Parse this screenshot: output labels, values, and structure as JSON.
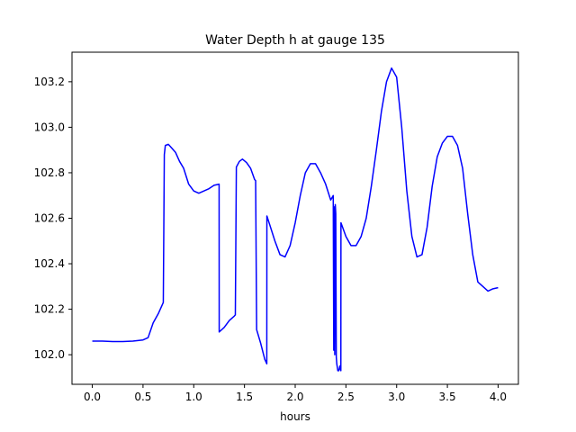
{
  "chart_data": {
    "type": "line",
    "title": "Water Depth h at gauge 135",
    "xlabel": "hours",
    "ylabel": "",
    "xlim": [
      -0.2,
      4.2
    ],
    "ylim": [
      101.87,
      103.33
    ],
    "xticks": [
      0.0,
      0.5,
      1.0,
      1.5,
      2.0,
      2.5,
      3.0,
      3.5,
      4.0
    ],
    "xtick_labels": [
      "0.0",
      "0.5",
      "1.0",
      "1.5",
      "2.0",
      "2.5",
      "3.0",
      "3.5",
      "4.0"
    ],
    "yticks": [
      102.0,
      102.2,
      102.4,
      102.6,
      102.8,
      103.0,
      103.2
    ],
    "ytick_labels": [
      "102.0",
      "102.2",
      "102.4",
      "102.6",
      "102.8",
      "103.0",
      "103.2"
    ],
    "grid": false,
    "series": [
      {
        "color": "#0000ff",
        "x": [
          0.0,
          0.1,
          0.2,
          0.3,
          0.4,
          0.5,
          0.55,
          0.6,
          0.65,
          0.7,
          0.71,
          0.72,
          0.75,
          0.78,
          0.82,
          0.86,
          0.9,
          0.95,
          1.0,
          1.05,
          1.1,
          1.15,
          1.2,
          1.25,
          1.251,
          1.3,
          1.35,
          1.4,
          1.41,
          1.42,
          1.45,
          1.48,
          1.52,
          1.56,
          1.6,
          1.61,
          1.62,
          1.66,
          1.7,
          1.72,
          1.721,
          1.75,
          1.8,
          1.85,
          1.9,
          1.95,
          2.0,
          2.05,
          2.1,
          2.15,
          2.2,
          2.25,
          2.3,
          2.35,
          2.375,
          2.38,
          2.385,
          2.39,
          2.395,
          2.4,
          2.405,
          2.41,
          2.42,
          2.43,
          2.44,
          2.45,
          2.451,
          2.5,
          2.55,
          2.6,
          2.65,
          2.7,
          2.75,
          2.8,
          2.85,
          2.9,
          2.95,
          3.0,
          3.05,
          3.1,
          3.15,
          3.2,
          3.25,
          3.3,
          3.35,
          3.4,
          3.45,
          3.5,
          3.55,
          3.6,
          3.65,
          3.7,
          3.75,
          3.8,
          3.85,
          3.9,
          3.95,
          4.0
        ],
        "y": [
          102.06,
          102.06,
          102.058,
          102.058,
          102.06,
          102.065,
          102.075,
          102.14,
          102.18,
          102.23,
          102.88,
          102.92,
          102.925,
          102.91,
          102.89,
          102.85,
          102.82,
          102.75,
          102.72,
          102.71,
          102.72,
          102.73,
          102.745,
          102.75,
          102.1,
          102.12,
          102.15,
          102.17,
          102.175,
          102.825,
          102.85,
          102.86,
          102.845,
          102.82,
          102.77,
          102.765,
          102.11,
          102.05,
          101.98,
          101.96,
          102.61,
          102.57,
          102.5,
          102.44,
          102.43,
          102.48,
          102.58,
          102.7,
          102.8,
          102.84,
          102.84,
          102.8,
          102.75,
          102.68,
          102.7,
          102.02,
          102.65,
          102.0,
          102.66,
          102.62,
          101.99,
          101.96,
          101.93,
          101.93,
          101.95,
          101.93,
          102.58,
          102.52,
          102.48,
          102.48,
          102.52,
          102.6,
          102.74,
          102.9,
          103.07,
          103.2,
          103.26,
          103.22,
          103.0,
          102.72,
          102.52,
          102.43,
          102.44,
          102.56,
          102.74,
          102.87,
          102.93,
          102.96,
          102.96,
          102.92,
          102.82,
          102.62,
          102.44,
          102.32,
          102.3,
          102.28,
          102.29,
          102.295
        ]
      }
    ]
  }
}
